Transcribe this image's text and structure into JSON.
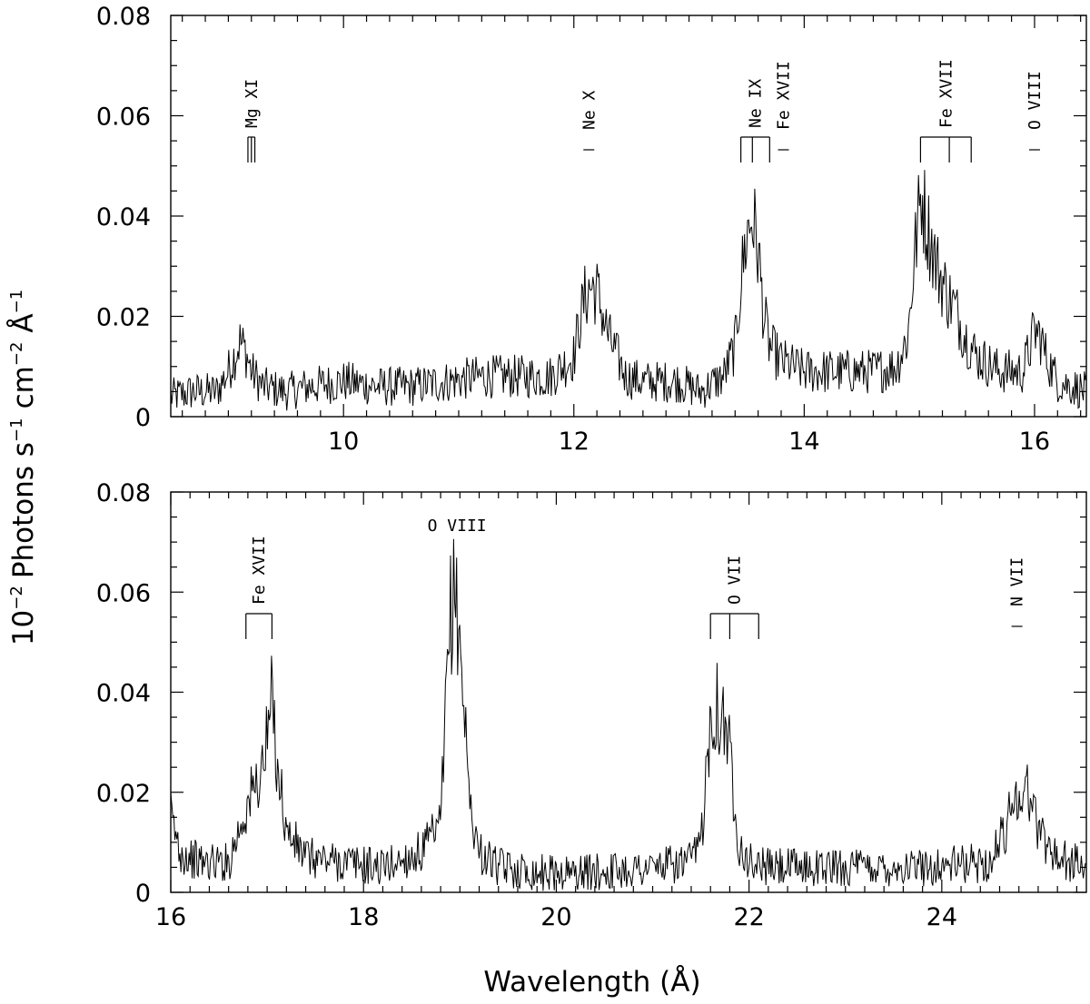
{
  "chart_data": {
    "type": "line",
    "ylabel_parts": {
      "prefix": "10",
      "exp1": "−2",
      "mid1": "Photons s",
      "exp2": "−1",
      "mid2": "cm",
      "exp3": "−2",
      "mid3": "Å",
      "exp4": "−1"
    },
    "xlabel": "Wavelength (Å)",
    "panels": [
      {
        "xlim": [
          8.5,
          16.45
        ],
        "ylim": [
          0,
          0.08
        ],
        "xticks": [
          10,
          12,
          14,
          16
        ],
        "xtick_labels": [
          "10",
          "12",
          "14",
          "16"
        ],
        "yticks": [
          0,
          0.02,
          0.04,
          0.06,
          0.08
        ],
        "ytick_labels": [
          "0",
          "0.02",
          "0.04",
          "0.06",
          "0.08"
        ],
        "series": [
          {
            "x": [
              8.5,
              8.7,
              8.9,
              9.0,
              9.05,
              9.1,
              9.15,
              9.2,
              9.3,
              9.5,
              9.7,
              10.0,
              10.3,
              10.6,
              10.9,
              11.2,
              11.5,
              11.8,
              12.0,
              12.05,
              12.1,
              12.15,
              12.2,
              12.3,
              12.45,
              12.6,
              12.9,
              13.1,
              13.3,
              13.4,
              13.45,
              13.5,
              13.55,
              13.6,
              13.65,
              13.7,
              13.8,
              14.0,
              14.3,
              14.6,
              14.8,
              14.9,
              14.97,
              15.02,
              15.05,
              15.1,
              15.15,
              15.2,
              15.25,
              15.3,
              15.4,
              15.5,
              15.7,
              15.9,
              15.95,
              16.0,
              16.05,
              16.1,
              16.2,
              16.45
            ],
            "y": [
              0.004,
              0.005,
              0.005,
              0.009,
              0.012,
              0.015,
              0.013,
              0.009,
              0.006,
              0.005,
              0.006,
              0.007,
              0.006,
              0.006,
              0.007,
              0.008,
              0.008,
              0.008,
              0.012,
              0.019,
              0.024,
              0.026,
              0.025,
              0.016,
              0.008,
              0.007,
              0.007,
              0.005,
              0.008,
              0.014,
              0.027,
              0.036,
              0.04,
              0.033,
              0.02,
              0.014,
              0.011,
              0.009,
              0.009,
              0.009,
              0.01,
              0.016,
              0.035,
              0.045,
              0.04,
              0.035,
              0.03,
              0.027,
              0.024,
              0.022,
              0.016,
              0.012,
              0.009,
              0.009,
              0.013,
              0.017,
              0.016,
              0.012,
              0.007,
              0.005
            ]
          }
        ],
        "annotations": [
          {
            "text": "Mg XI",
            "lines": [
              9.17,
              9.2,
              9.23
            ],
            "bracket": true
          },
          {
            "text": "Ne X",
            "lines": [
              12.13
            ],
            "bracket": false
          },
          {
            "text": "Ne IX",
            "lines": [
              13.45,
              13.55,
              13.7
            ],
            "bracket": true
          },
          {
            "text": "Fe XVII",
            "lines": [
              13.82
            ],
            "bracket": false
          },
          {
            "text": "Fe XVII",
            "lines": [
              15.01,
              15.26,
              15.45
            ],
            "bracket": true
          },
          {
            "text": "O VIII",
            "lines": [
              16.0
            ],
            "bracket": false
          }
        ]
      },
      {
        "xlim": [
          16.0,
          25.5
        ],
        "ylim": [
          0,
          0.08
        ],
        "xticks": [
          16,
          18,
          20,
          22,
          24
        ],
        "xtick_labels": [
          "16",
          "18",
          "20",
          "22",
          "24"
        ],
        "yticks": [
          0,
          0.02,
          0.04,
          0.06,
          0.08
        ],
        "ytick_labels": [
          "0",
          "0.02",
          "0.04",
          "0.06",
          "0.08"
        ],
        "series": [
          {
            "x": [
              16.0,
              16.1,
              16.3,
              16.6,
              16.75,
              16.85,
              16.9,
              16.95,
              17.0,
              17.05,
              17.1,
              17.2,
              17.4,
              17.8,
              18.2,
              18.6,
              18.8,
              18.85,
              18.9,
              18.95,
              19.0,
              19.05,
              19.1,
              19.2,
              19.4,
              19.8,
              20.4,
              21.0,
              21.4,
              21.5,
              21.55,
              21.6,
              21.65,
              21.7,
              21.75,
              21.8,
              21.85,
              21.9,
              22.0,
              22.2,
              22.6,
              23.2,
              23.8,
              24.5,
              24.65,
              24.75,
              24.85,
              24.9,
              24.95,
              25.05,
              25.2,
              25.5
            ],
            "y": [
              0.015,
              0.008,
              0.006,
              0.006,
              0.015,
              0.02,
              0.022,
              0.025,
              0.03,
              0.039,
              0.027,
              0.012,
              0.007,
              0.006,
              0.005,
              0.008,
              0.013,
              0.035,
              0.055,
              0.06,
              0.051,
              0.035,
              0.018,
              0.008,
              0.005,
              0.004,
              0.004,
              0.005,
              0.006,
              0.01,
              0.022,
              0.036,
              0.038,
              0.036,
              0.034,
              0.028,
              0.018,
              0.01,
              0.006,
              0.005,
              0.005,
              0.005,
              0.005,
              0.006,
              0.012,
              0.019,
              0.021,
              0.02,
              0.016,
              0.011,
              0.007,
              0.005
            ]
          }
        ],
        "annotations": [
          {
            "text": "Fe XVII",
            "lines": [
              16.78,
              17.05
            ],
            "bracket": true
          },
          {
            "text": "O VIII",
            "lines": [
              18.97
            ],
            "bracket": false,
            "horizontal": true
          },
          {
            "text": "O VII",
            "lines": [
              21.6,
              21.8,
              22.1
            ],
            "bracket": true
          },
          {
            "text": "N VII",
            "lines": [
              24.78
            ],
            "bracket": false
          }
        ]
      }
    ]
  }
}
